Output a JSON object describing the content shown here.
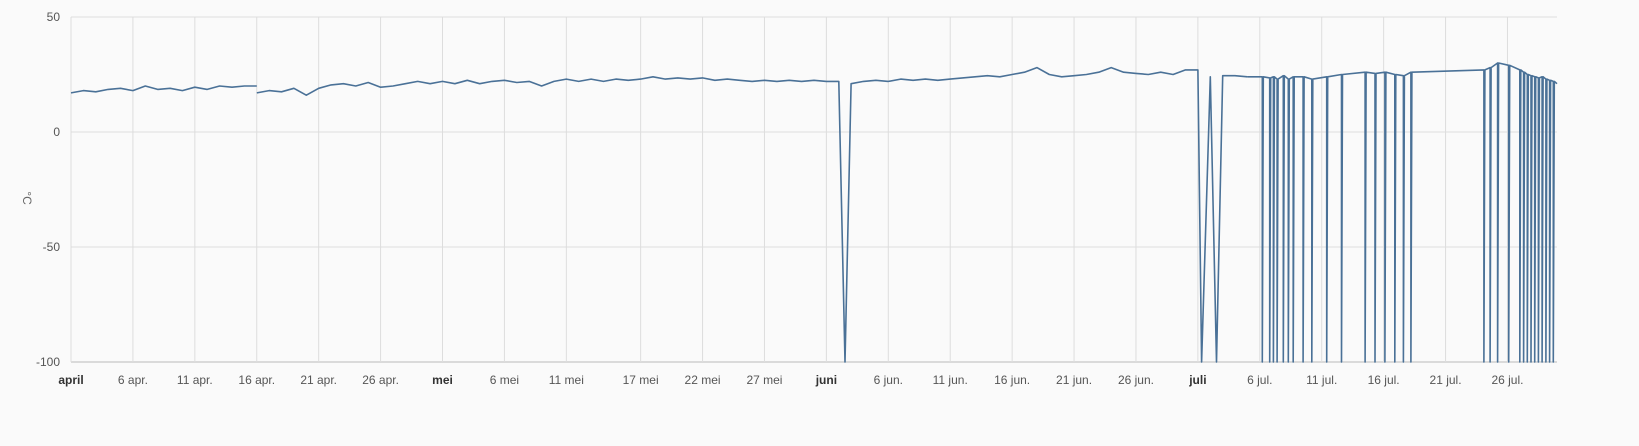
{
  "chart_data": {
    "type": "line",
    "title": "",
    "ylabel": "°C",
    "xlabel": "",
    "ylim": [
      -100,
      50
    ],
    "xlim": [
      "2024-04-01",
      "2024-07-30"
    ],
    "grid": true,
    "y_ticks": [
      {
        "value": 50,
        "label": "50"
      },
      {
        "value": 0,
        "label": "0"
      },
      {
        "value": -50,
        "label": "-50"
      },
      {
        "value": -100,
        "label": "-100"
      }
    ],
    "x_ticks": [
      {
        "date": "2024-04-01",
        "label": "april",
        "bold": true
      },
      {
        "date": "2024-04-06",
        "label": "6 apr.",
        "bold": false
      },
      {
        "date": "2024-04-11",
        "label": "11 apr.",
        "bold": false
      },
      {
        "date": "2024-04-16",
        "label": "16 apr.",
        "bold": false
      },
      {
        "date": "2024-04-21",
        "label": "21 apr.",
        "bold": false
      },
      {
        "date": "2024-04-26",
        "label": "26 apr.",
        "bold": false
      },
      {
        "date": "2024-05-01",
        "label": "mei",
        "bold": true
      },
      {
        "date": "2024-05-06",
        "label": "6 mei",
        "bold": false
      },
      {
        "date": "2024-05-11",
        "label": "11 mei",
        "bold": false
      },
      {
        "date": "2024-05-17",
        "label": "17 mei",
        "bold": false
      },
      {
        "date": "2024-05-22",
        "label": "22 mei",
        "bold": false
      },
      {
        "date": "2024-05-27",
        "label": "27 mei",
        "bold": false
      },
      {
        "date": "2024-06-01",
        "label": "juni",
        "bold": true
      },
      {
        "date": "2024-06-06",
        "label": "6 jun.",
        "bold": false
      },
      {
        "date": "2024-06-11",
        "label": "11 jun.",
        "bold": false
      },
      {
        "date": "2024-06-16",
        "label": "16 jun.",
        "bold": false
      },
      {
        "date": "2024-06-21",
        "label": "21 jun.",
        "bold": false
      },
      {
        "date": "2024-06-26",
        "label": "26 jun.",
        "bold": false
      },
      {
        "date": "2024-07-01",
        "label": "juli",
        "bold": true
      },
      {
        "date": "2024-07-06",
        "label": "6 jul.",
        "bold": false
      },
      {
        "date": "2024-07-11",
        "label": "11 jul.",
        "bold": false
      },
      {
        "date": "2024-07-16",
        "label": "16 jul.",
        "bold": false
      },
      {
        "date": "2024-07-21",
        "label": "21 jul.",
        "bold": false
      },
      {
        "date": "2024-07-26",
        "label": "26 jul.",
        "bold": false
      }
    ],
    "series": [
      {
        "color": "#4a7197",
        "segments": [
          [
            [
              "2024-04-01",
              17
            ],
            [
              "2024-04-02",
              18
            ],
            [
              "2024-04-03",
              17.5
            ],
            [
              "2024-04-04",
              18.5
            ],
            [
              "2024-04-05",
              19
            ],
            [
              "2024-04-06",
              18
            ],
            [
              "2024-04-07",
              20
            ],
            [
              "2024-04-08",
              18.5
            ],
            [
              "2024-04-09",
              19
            ],
            [
              "2024-04-10",
              18
            ],
            [
              "2024-04-11",
              19.5
            ],
            [
              "2024-04-12",
              18.5
            ],
            [
              "2024-04-13",
              20
            ],
            [
              "2024-04-14",
              19.5
            ],
            [
              "2024-04-15",
              20
            ],
            [
              "2024-04-16",
              20
            ]
          ],
          [
            [
              "2024-04-16",
              17
            ],
            [
              "2024-04-17",
              18
            ],
            [
              "2024-04-18",
              17.5
            ],
            [
              "2024-04-19",
              19
            ],
            [
              "2024-04-20",
              16
            ],
            [
              "2024-04-21",
              19
            ],
            [
              "2024-04-22",
              20.5
            ],
            [
              "2024-04-23",
              21
            ],
            [
              "2024-04-24",
              20
            ],
            [
              "2024-04-25",
              21.5
            ],
            [
              "2024-04-26",
              19.5
            ],
            [
              "2024-04-27",
              20
            ],
            [
              "2024-04-28",
              21
            ],
            [
              "2024-04-29",
              22
            ],
            [
              "2024-04-30",
              21
            ],
            [
              "2024-05-01",
              22
            ],
            [
              "2024-05-02",
              21
            ],
            [
              "2024-05-03",
              22.5
            ],
            [
              "2024-05-04",
              21
            ],
            [
              "2024-05-05",
              22
            ],
            [
              "2024-05-06",
              22.5
            ],
            [
              "2024-05-07",
              21.5
            ],
            [
              "2024-05-08",
              22
            ],
            [
              "2024-05-09",
              20
            ],
            [
              "2024-05-10",
              22
            ],
            [
              "2024-05-11",
              23
            ],
            [
              "2024-05-12",
              22
            ],
            [
              "2024-05-13",
              23
            ],
            [
              "2024-05-14",
              22
            ],
            [
              "2024-05-15",
              23
            ],
            [
              "2024-05-16",
              22.5
            ],
            [
              "2024-05-17",
              23
            ],
            [
              "2024-05-18",
              24
            ],
            [
              "2024-05-19",
              23
            ],
            [
              "2024-05-20",
              23.5
            ],
            [
              "2024-05-21",
              23
            ],
            [
              "2024-05-22",
              23.5
            ],
            [
              "2024-05-23",
              22.5
            ],
            [
              "2024-05-24",
              23
            ],
            [
              "2024-05-25",
              22.5
            ],
            [
              "2024-05-26",
              22
            ],
            [
              "2024-05-27",
              22.5
            ],
            [
              "2024-05-28",
              22
            ],
            [
              "2024-05-29",
              22.5
            ],
            [
              "2024-05-30",
              22
            ],
            [
              "2024-05-31",
              22.5
            ],
            [
              "2024-06-01",
              22
            ],
            [
              "2024-06-02",
              22
            ],
            [
              "2024-06-02.5",
              -100
            ],
            [
              "2024-06-03",
              21
            ],
            [
              "2024-06-04",
              22
            ],
            [
              "2024-06-05",
              22.5
            ],
            [
              "2024-06-06",
              22
            ],
            [
              "2024-06-07",
              23
            ],
            [
              "2024-06-08",
              22.5
            ],
            [
              "2024-06-09",
              23
            ],
            [
              "2024-06-10",
              22.5
            ],
            [
              "2024-06-11",
              23
            ],
            [
              "2024-06-12",
              23.5
            ],
            [
              "2024-06-13",
              24
            ],
            [
              "2024-06-14",
              24.5
            ],
            [
              "2024-06-15",
              24
            ],
            [
              "2024-06-16",
              25
            ],
            [
              "2024-06-17",
              26
            ],
            [
              "2024-06-18",
              28
            ],
            [
              "2024-06-19",
              25
            ],
            [
              "2024-06-20",
              24
            ],
            [
              "2024-06-21",
              24.5
            ],
            [
              "2024-06-22",
              25
            ],
            [
              "2024-06-23",
              26
            ],
            [
              "2024-06-24",
              28
            ],
            [
              "2024-06-25",
              26
            ],
            [
              "2024-06-26",
              25.5
            ],
            [
              "2024-06-27",
              25
            ],
            [
              "2024-06-28",
              26
            ],
            [
              "2024-06-29",
              25
            ],
            [
              "2024-06-30",
              27
            ],
            [
              "2024-07-01",
              27
            ],
            [
              "2024-07-01.3",
              -100
            ],
            [
              "2024-07-02",
              24
            ],
            [
              "2024-07-02.5",
              -100
            ],
            [
              "2024-07-03",
              24.5
            ],
            [
              "2024-07-04",
              24.5
            ],
            [
              "2024-07-05",
              24
            ]
          ]
        ]
      }
    ]
  }
}
